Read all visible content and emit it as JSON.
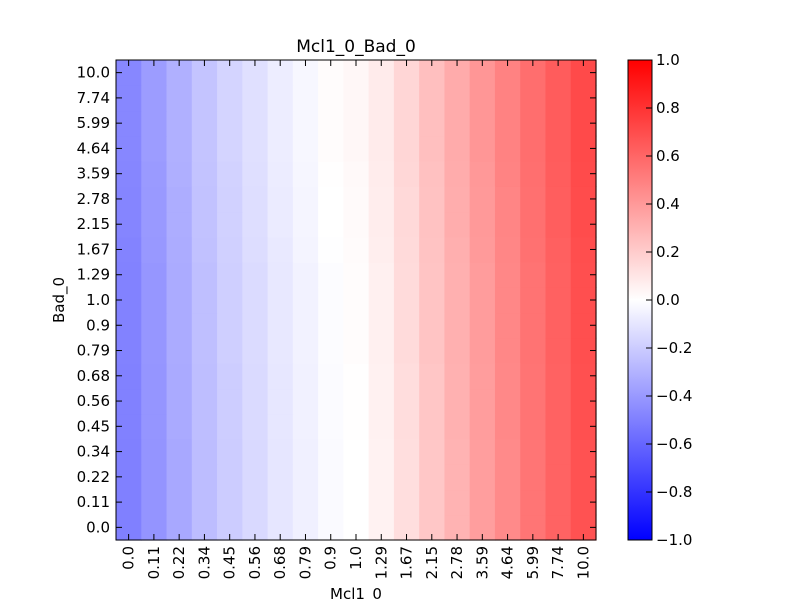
{
  "chart_data": {
    "type": "heatmap",
    "title": "Mcl1_0_Bad_0",
    "xlabel": "Mcl1_0",
    "ylabel": "Bad_0",
    "x_categories": [
      "0.0",
      "0.11",
      "0.22",
      "0.34",
      "0.45",
      "0.56",
      "0.68",
      "0.79",
      "0.9",
      "1.0",
      "1.29",
      "1.67",
      "2.15",
      "2.78",
      "3.59",
      "4.64",
      "5.99",
      "7.74",
      "10.0"
    ],
    "y_categories": [
      "0.0",
      "0.11",
      "0.22",
      "0.34",
      "0.45",
      "0.56",
      "0.68",
      "0.79",
      "0.9",
      "1.0",
      "1.29",
      "1.67",
      "2.15",
      "2.78",
      "3.59",
      "4.64",
      "5.99",
      "7.74",
      "10.0"
    ],
    "column_values": [
      -0.5,
      -0.42,
      -0.34,
      -0.26,
      -0.2,
      -0.15,
      -0.1,
      -0.06,
      -0.02,
      0.0,
      0.05,
      0.13,
      0.22,
      0.3,
      0.38,
      0.46,
      0.54,
      0.61,
      0.68
    ],
    "row_offsets": [
      0.0,
      0.0,
      0.0,
      0.0,
      0.005,
      0.005,
      0.005,
      0.01,
      0.01,
      0.01,
      0.01,
      0.015,
      0.02,
      0.02,
      0.025,
      0.03,
      0.03,
      0.03,
      0.03
    ],
    "colorbar": {
      "colormap": "bwr",
      "vmin": -1.0,
      "vmax": 1.0,
      "ticks": [
        "-1.0",
        "-0.8",
        "-0.6",
        "-0.4",
        "-0.2",
        "0.0",
        "0.2",
        "0.4",
        "0.6",
        "0.8",
        "1.0"
      ],
      "tick_values": [
        -1.0,
        -0.8,
        -0.6,
        -0.4,
        -0.2,
        0.0,
        0.2,
        0.4,
        0.6,
        0.8,
        1.0
      ]
    }
  }
}
